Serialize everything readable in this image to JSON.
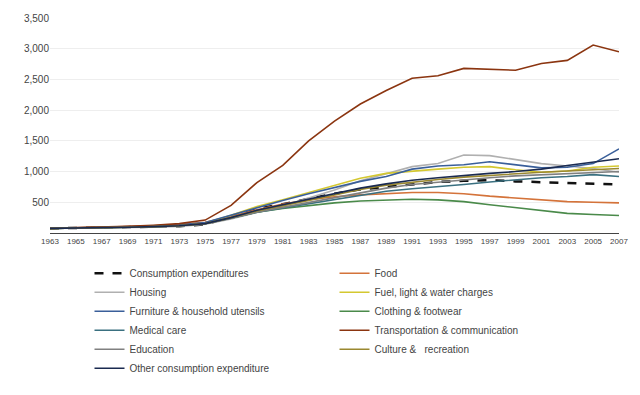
{
  "chart_data": {
    "type": "line",
    "x": [
      1963,
      1965,
      1967,
      1969,
      1971,
      1973,
      1975,
      1977,
      1979,
      1981,
      1983,
      1985,
      1987,
      1989,
      1991,
      1993,
      1995,
      1997,
      1999,
      2001,
      2003,
      2005,
      2007
    ],
    "series": [
      {
        "name": "Consumption expenditures",
        "color": "#111111",
        "line_style": "dashed",
        "values": [
          75,
          80,
          85,
          90,
          98,
          110,
          140,
          270,
          390,
          470,
          560,
          640,
          710,
          750,
          800,
          830,
          850,
          860,
          840,
          830,
          820,
          810,
          790
        ]
      },
      {
        "name": "Food",
        "color": "#d4733a",
        "line_style": "solid",
        "values": [
          75,
          82,
          92,
          105,
          118,
          138,
          175,
          270,
          380,
          470,
          540,
          590,
          620,
          640,
          660,
          660,
          640,
          600,
          570,
          540,
          510,
          500,
          490
        ]
      },
      {
        "name": "Housing",
        "color": "#b0b0b0",
        "line_style": "solid",
        "values": [
          75,
          78,
          82,
          88,
          95,
          108,
          145,
          230,
          340,
          440,
          570,
          700,
          850,
          970,
          1080,
          1130,
          1270,
          1260,
          1190,
          1130,
          1090,
          1050,
          990
        ]
      },
      {
        "name": "Fuel, light & water charges",
        "color": "#d4c830",
        "line_style": "solid",
        "values": [
          75,
          80,
          87,
          96,
          106,
          122,
          162,
          290,
          430,
          540,
          660,
          780,
          890,
          970,
          1010,
          1040,
          1070,
          1080,
          1030,
          990,
          1010,
          1070,
          1090
        ]
      },
      {
        "name": "Furniture & household utensils",
        "color": "#3a5f9a",
        "line_style": "solid",
        "values": [
          75,
          80,
          88,
          100,
          114,
          132,
          170,
          290,
          420,
          530,
          640,
          740,
          840,
          920,
          1040,
          1090,
          1110,
          1160,
          1110,
          1060,
          1070,
          1130,
          1370
        ]
      },
      {
        "name": "Clothing & footwear",
        "color": "#4a8a4a",
        "line_style": "solid",
        "values": [
          75,
          79,
          85,
          93,
          103,
          118,
          155,
          245,
          340,
          400,
          450,
          490,
          520,
          540,
          550,
          540,
          510,
          460,
          410,
          360,
          320,
          300,
          285
        ]
      },
      {
        "name": "Medical care",
        "color": "#3a7080",
        "line_style": "solid",
        "values": [
          75,
          79,
          85,
          93,
          103,
          117,
          153,
          240,
          340,
          410,
          480,
          550,
          620,
          680,
          720,
          750,
          790,
          830,
          870,
          900,
          920,
          950,
          920
        ]
      },
      {
        "name": "Transportation & communication",
        "color": "#8b3510",
        "line_style": "solid",
        "values": [
          75,
          82,
          93,
          108,
          126,
          152,
          210,
          450,
          820,
          1100,
          1500,
          1820,
          2100,
          2320,
          2520,
          2560,
          2680,
          2660,
          2650,
          2760,
          2810,
          3060,
          2950
        ]
      },
      {
        "name": "Education",
        "color": "#808080",
        "line_style": "solid",
        "values": [
          75,
          79,
          85,
          93,
          103,
          117,
          153,
          240,
          340,
          420,
          500,
          580,
          660,
          730,
          790,
          830,
          870,
          900,
          930,
          950,
          970,
          990,
          1000
        ]
      },
      {
        "name": "Culture &   recreation",
        "color": "#9a8830",
        "line_style": "solid",
        "values": [
          75,
          79,
          85,
          93,
          103,
          117,
          153,
          250,
          360,
          440,
          530,
          620,
          710,
          780,
          830,
          870,
          910,
          940,
          970,
          990,
          1010,
          1030,
          1050
        ]
      },
      {
        "name": "Other consumption expenditure",
        "color": "#1a2a50",
        "line_style": "solid",
        "values": [
          75,
          79,
          85,
          93,
          103,
          117,
          153,
          250,
          370,
          460,
          550,
          640,
          730,
          800,
          860,
          900,
          940,
          970,
          1000,
          1040,
          1100,
          1160,
          1210
        ]
      }
    ],
    "xlim": [
      1963,
      2007
    ],
    "xticks": [
      1963,
      1965,
      1967,
      1969,
      1971,
      1973,
      1975,
      1977,
      1979,
      1981,
      1983,
      1985,
      1987,
      1989,
      1991,
      1993,
      1995,
      1997,
      1999,
      2001,
      2003,
      2005,
      2007
    ],
    "ylim": [
      0,
      3500
    ],
    "yticks": [
      500,
      {
        "value": 1000,
        "label": "1,000"
      },
      {
        "value": 1500,
        "label": "1,500"
      },
      {
        "value": 2000,
        "label": "2,000"
      },
      {
        "value": 2500,
        "label": "2,500"
      },
      {
        "value": 3000,
        "label": "3,000"
      },
      {
        "value": 3500,
        "label": "3,500"
      }
    ],
    "grid": true
  }
}
